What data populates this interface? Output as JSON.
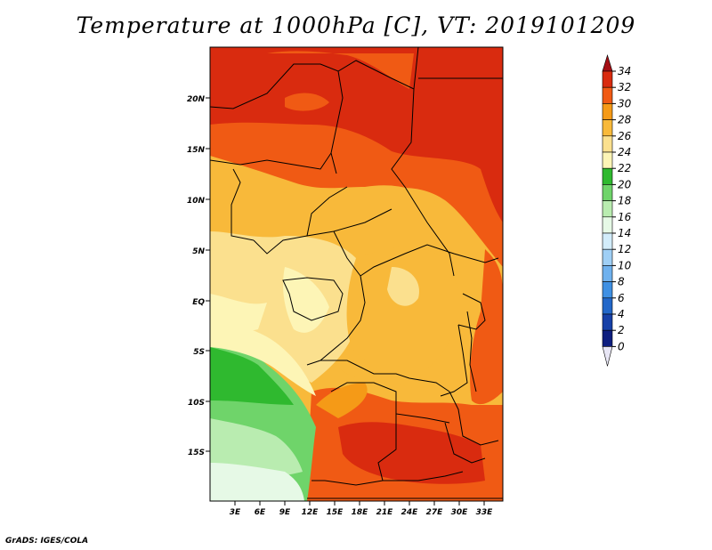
{
  "title": "Temperature at 1000hPa [C], VT: 2019101209",
  "footer": "GrADS: IGES/COLA",
  "map": {
    "lat_labels": [
      "20N",
      "15N",
      "10N",
      "5N",
      "EQ",
      "5S",
      "10S",
      "15S"
    ],
    "lon_labels": [
      "3E",
      "6E",
      "9E",
      "12E",
      "15E",
      "18E",
      "21E",
      "24E",
      "27E",
      "30E",
      "33E"
    ]
  },
  "colorbar": {
    "labels": [
      "34",
      "32",
      "30",
      "28",
      "26",
      "24",
      "22",
      "20",
      "18",
      "16",
      "14",
      "12",
      "10",
      "8",
      "6",
      "4",
      "2",
      "0"
    ],
    "colors": [
      "#a50f15",
      "#d92b0f",
      "#f05a14",
      "#f59a17",
      "#f8b93a",
      "#fbe08e",
      "#fdf5b6",
      "#2fb92f",
      "#6fd46a",
      "#b9ecb0",
      "#e6f9e6",
      "#d2ecfa",
      "#9fcff5",
      "#6fb1ee",
      "#3f90e3",
      "#2267c9",
      "#1640a8",
      "#0e1e7f",
      "#080a55"
    ]
  }
}
